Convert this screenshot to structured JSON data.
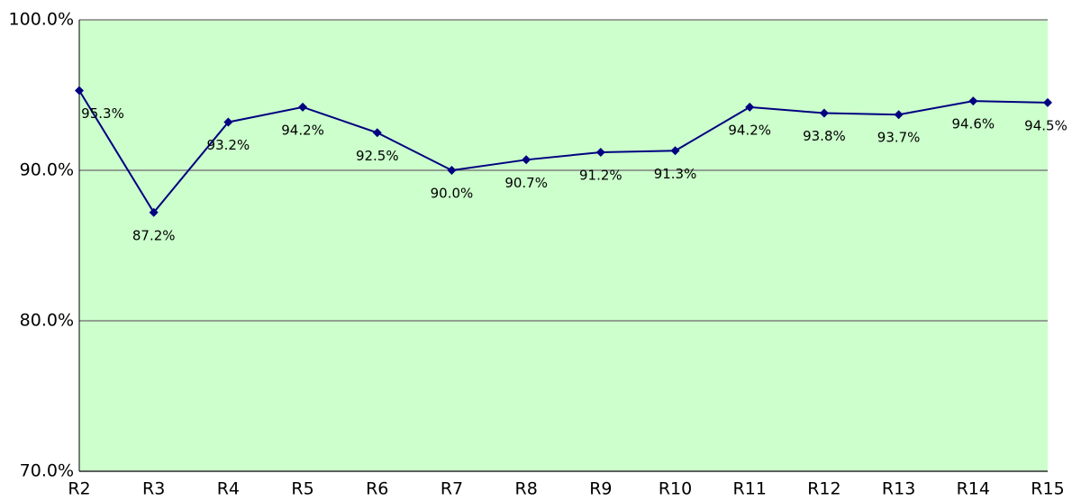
{
  "chart_data": {
    "type": "line",
    "categories": [
      "R2",
      "R3",
      "R4",
      "R5",
      "R6",
      "R7",
      "R8",
      "R9",
      "R10",
      "R11",
      "R12",
      "R13",
      "R14",
      "R15"
    ],
    "values": [
      95.3,
      87.2,
      93.2,
      94.2,
      92.5,
      90.0,
      90.7,
      91.2,
      91.3,
      94.2,
      93.8,
      93.7,
      94.6,
      94.5
    ],
    "value_labels": [
      "95.3%",
      "87.2%",
      "93.2%",
      "94.2%",
      "92.5%",
      "90.0%",
      "90.7%",
      "91.2%",
      "91.3%",
      "94.2%",
      "93.8%",
      "93.7%",
      "94.6%",
      "94.5%"
    ],
    "color": "#000080",
    "background": "#ccffcc",
    "ylim": [
      70,
      100
    ],
    "yticks": [
      {
        "value": 70,
        "label": "70.0%"
      },
      {
        "value": 80,
        "label": "80.0%"
      },
      {
        "value": 90,
        "label": "90.0%"
      },
      {
        "value": 100,
        "label": "100.0%"
      }
    ],
    "grid": true
  }
}
